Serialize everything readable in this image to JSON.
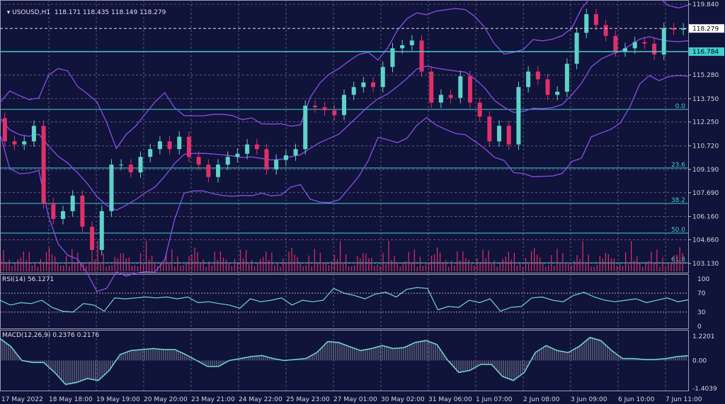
{
  "header": {
    "symbol": "USOUSD,H1",
    "open": "118.171",
    "high": "118.435",
    "low": "118.149",
    "close": "118.279"
  },
  "colors": {
    "background": "#10133a",
    "grid": "#8a8aa8",
    "bull": "#5fd3c8",
    "bear": "#e0306a",
    "bollinger": "#8a4fe8",
    "level_line": "#3fd0d0",
    "rsi": "#6fd8d0",
    "macd": "#6fd8d0",
    "histogram": "#b8b8c8"
  },
  "chart_data": [
    {
      "type": "candlestick",
      "title": "USOUSD,H1",
      "x_ticks": [
        "17 May 2022",
        "18 May 18:00",
        "19 May 19:00",
        "20 May 20:00",
        "23 May 21:00",
        "24 May 22:00",
        "25 May 23:00",
        "27 May 01:00",
        "30 May 02:00",
        "31 May 06:00",
        "1 Jun 07:00",
        "2 Jun 08:00",
        "3 Jun 09:00",
        "6 Jun 10:00",
        "7 Jun 11:00"
      ],
      "y_ticks": [
        "119.840",
        "115.280",
        "113.750",
        "112.250",
        "110.720",
        "109.190",
        "107.690",
        "106.160",
        "104.660",
        "103.130"
      ],
      "ylim": [
        103.13,
        119.84
      ],
      "closes": [
        112.5,
        111.0,
        110.8,
        111.0,
        112.0,
        107.0,
        106.0,
        106.5,
        107.5,
        105.5,
        104.0,
        106.5,
        109.5,
        109.5,
        109.0,
        110.0,
        110.5,
        111.0,
        110.5,
        111.3,
        110.0,
        109.5,
        108.7,
        109.5,
        110.0,
        110.2,
        110.8,
        110.5,
        109.2,
        109.8,
        110.1,
        110.5,
        113.3,
        113.2,
        113.0,
        112.7,
        114.0,
        114.5,
        114.8,
        114.5,
        115.8,
        117.0,
        117.2,
        117.5,
        115.5,
        113.5,
        114.0,
        113.8,
        115.2,
        113.5,
        112.6,
        111.0,
        112.0,
        110.8,
        114.5,
        115.5,
        115.0,
        114.0,
        114.2,
        116.0,
        118.0,
        119.2,
        118.5,
        117.8,
        116.8,
        117.0,
        117.4,
        117.3,
        116.6,
        118.3,
        118.2,
        118.28
      ],
      "indicators": [
        "Bollinger Bands",
        "Volume"
      ],
      "current_price": "118.279",
      "horizontal_level": "116.784",
      "fibonacci_levels": [
        {
          "label": "0.0",
          "price": 113.06
        },
        {
          "label": "23.6",
          "price": 109.28
        },
        {
          "label": "38.2",
          "price": 107.0
        },
        {
          "label": "50.0",
          "price": 105.09
        },
        {
          "label": "61.8",
          "price": 103.17
        }
      ],
      "grid": true
    },
    {
      "type": "line",
      "title": "RSI(14) 56.1271",
      "y_ticks": [
        "100",
        "70",
        "30",
        "0"
      ],
      "ylim": [
        0,
        100
      ],
      "levels": [
        30,
        70
      ],
      "values": [
        55,
        45,
        50,
        48,
        55,
        40,
        32,
        30,
        48,
        45,
        32,
        60,
        58,
        60,
        62,
        60,
        62,
        58,
        62,
        50,
        52,
        48,
        45,
        38,
        58,
        52,
        55,
        60,
        45,
        55,
        52,
        55,
        80,
        70,
        65,
        58,
        68,
        72,
        62,
        78,
        82,
        80,
        35,
        42,
        40,
        55,
        50,
        58,
        32,
        40,
        42,
        60,
        62,
        55,
        52,
        65,
        72,
        62,
        55,
        52,
        55,
        58,
        50,
        55,
        60,
        52,
        56
      ]
    },
    {
      "type": "line",
      "title": "MACD(12,26,9) 0.2376 0.2176",
      "y_ticks": [
        "1.2201",
        "0.00",
        "-1.4039"
      ],
      "ylim": [
        -1.4039,
        1.2201
      ],
      "values": [
        1.1,
        0.7,
        0.0,
        -0.1,
        -0.1,
        -0.6,
        -1.2,
        -1.1,
        -0.9,
        -1.0,
        -0.5,
        0.3,
        0.5,
        0.55,
        0.6,
        0.55,
        0.55,
        0.3,
        0.0,
        -0.3,
        -0.3,
        0.0,
        0.1,
        0.2,
        0.25,
        0.1,
        0.0,
        0.05,
        0.1,
        0.4,
        0.95,
        0.9,
        0.7,
        0.5,
        0.6,
        0.75,
        0.6,
        0.65,
        0.9,
        1.0,
        0.8,
        0.0,
        -0.6,
        -0.5,
        -0.2,
        -0.2,
        -0.8,
        -1.0,
        -0.6,
        0.4,
        0.75,
        0.5,
        0.4,
        0.7,
        1.15,
        1.0,
        0.5,
        0.1,
        0.1,
        0.05,
        0.05,
        0.1,
        0.2,
        0.24
      ]
    }
  ]
}
